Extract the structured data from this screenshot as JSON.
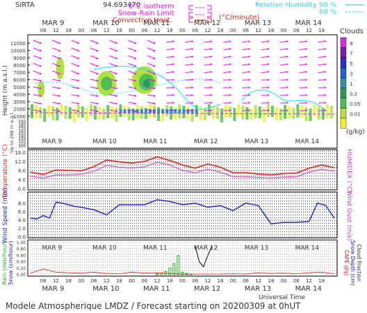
{
  "header": {
    "station": "SIRTA",
    "station_value": "94.693470",
    "legend_isotherm": "0°C isotherm",
    "legend_snow_rain": "Snow-Rain Limit",
    "legend_convective": "Convective Heat.",
    "legend_convective_unit": "(°C/minute)",
    "legend_rh": "Relative Humidity",
    "rh_90": "90 %",
    "rh_60": "60 %"
  },
  "footer": {
    "caption": "Modele Atmospherique LMDZ / Forecast starting on 20200309 at 0hUT",
    "utc_label": "Universal Time"
  },
  "colors": {
    "temperature": "#e02020",
    "humidex": "#c040c0",
    "wind_speed": "#2020c0",
    "wind_gust": "#c040c0",
    "rain": "#20b020",
    "snow": "#2020c0",
    "cape": "#e02020",
    "rh90": "#30e0ff",
    "rh60": "#30e0ff",
    "isotherm": "#ff00ff"
  },
  "time_axis": {
    "days": [
      "MAR 9",
      "MAR 10",
      "MAR 11",
      "MAR 12",
      "MAR 13",
      "MAR 14"
    ],
    "hours": [
      "06",
      "12",
      "18",
      "00",
      "06",
      "12",
      "18",
      "00",
      "06",
      "12",
      "18",
      "00",
      "06",
      "12",
      "18",
      "00",
      "06",
      "12",
      "18",
      "00",
      "06",
      "12",
      "18"
    ]
  },
  "cloud_colorbar": {
    "title": "Clouds",
    "unit": "(g/kg)",
    "labels": [
      "9",
      "7",
      "5",
      "3",
      "1",
      "0.2",
      "0.05",
      "0.01"
    ],
    "colors": [
      "#cc33cc",
      "#7a1ea8",
      "#3030c0",
      "#2060d0",
      "#3090b0",
      "#2a9a5a",
      "#4cc04c",
      "#b0e040",
      "#f0f030"
    ]
  },
  "chart_data": [
    {
      "type": "heatmap",
      "name": "clouds-height",
      "ylabel": "Height (m a.s.l.)",
      "ylabel2": "Up to 200 m a.g.l.",
      "y_ticks_upper": [
        "11000",
        "10000",
        "9000",
        "8000",
        "7000",
        "6000",
        "5000",
        "4000",
        "3000",
        "2000",
        "1000"
      ],
      "y_ticks_lower": [
        "200",
        "190",
        "180",
        "170",
        "160",
        "150",
        "140",
        "130",
        "120",
        "110",
        "100"
      ],
      "wind_arrows": true
    },
    {
      "type": "line",
      "name": "temperature",
      "ylabel": "Temperature (°C)",
      "ylabel_right": "HUMIDEX (°C)",
      "y_ticks": [
        "16.0",
        "12.0",
        "8.0",
        "4.0",
        "0.0"
      ],
      "ylim": [
        0,
        16
      ],
      "series": [
        {
          "name": "Temperature",
          "x": [
            0,
            6,
            12,
            18,
            24,
            30,
            36,
            42,
            48,
            54,
            60,
            66,
            72,
            78,
            84,
            90,
            96,
            102,
            108,
            114,
            120,
            126,
            132,
            138,
            144
          ],
          "values": [
            7.2,
            6.2,
            8.2,
            8.0,
            7.8,
            9.6,
            12.6,
            11.8,
            11.2,
            12.0,
            14.0,
            12.4,
            10.4,
            9.0,
            10.8,
            9.4,
            7.0,
            7.0,
            6.4,
            6.0,
            6.6,
            6.8,
            9.0,
            10.4,
            9.2
          ]
        },
        {
          "name": "Humidex",
          "x": [
            0,
            6,
            12,
            18,
            24,
            30,
            36,
            42,
            48,
            54,
            60,
            66,
            72,
            78,
            84,
            90,
            96,
            102,
            108,
            114,
            120,
            126,
            132,
            138,
            144
          ],
          "values": [
            5.4,
            4.6,
            6.0,
            6.0,
            6.2,
            7.6,
            10.2,
            9.4,
            9.0,
            9.6,
            11.6,
            10.4,
            8.0,
            7.0,
            8.6,
            7.2,
            5.2,
            5.2,
            4.8,
            4.6,
            5.0,
            5.2,
            7.2,
            8.6,
            7.6
          ]
        }
      ]
    },
    {
      "type": "line",
      "name": "wind",
      "ylabel": "Wind Speed (m/s)",
      "ylabel_right": "Wind Gust (m/s)",
      "y_ticks": [
        "8.0",
        "6.0",
        "4.0",
        "2.0",
        "0.0"
      ],
      "ylim": [
        0,
        10
      ],
      "series": [
        {
          "name": "Wind Speed",
          "x": [
            0,
            3,
            6,
            9,
            12,
            15,
            18,
            21,
            24,
            30,
            36,
            42,
            48,
            54,
            60,
            66,
            72,
            78,
            84,
            90,
            96,
            102,
            108,
            111,
            114,
            120,
            126,
            132,
            136,
            140,
            144
          ],
          "values": [
            4.4,
            4.2,
            5.0,
            4.4,
            8.2,
            8.0,
            7.6,
            7.2,
            7.0,
            6.4,
            5.2,
            7.6,
            7.6,
            7.6,
            8.8,
            8.4,
            7.6,
            8.0,
            7.0,
            7.4,
            6.2,
            8.0,
            7.4,
            5.2,
            3.0,
            3.4,
            3.4,
            3.6,
            8.0,
            7.4,
            4.4
          ]
        }
      ]
    },
    {
      "type": "bar",
      "name": "precipitation",
      "ylabel": "Rain (mm/hour)",
      "ylabel_b": "Snow (cm/hour)",
      "ylabel_right": "CAPE (J/g)",
      "ylabel_right_b": "Snow Depth (cm)",
      "ylabel_right_c": "Cloud Fraction",
      "y_ticks": [
        "1.00",
        "0.80",
        "0.60",
        "0.40",
        "0.20",
        "0.00"
      ],
      "ylim": [
        0,
        1
      ],
      "rain_x": [
        60,
        62,
        64,
        66,
        68,
        70,
        72,
        74,
        76
      ],
      "rain_values": [
        0.04,
        0.06,
        0.1,
        0.2,
        0.35,
        0.6,
        0.08,
        0.04,
        0.02
      ],
      "cape_x": [
        0,
        6,
        12,
        18,
        24,
        30,
        36,
        42,
        48,
        54,
        60,
        66,
        72,
        78,
        84,
        90,
        96,
        102,
        108,
        114,
        120,
        126,
        132,
        138,
        144
      ],
      "cape_values": [
        0.05,
        0.18,
        0.08,
        0.06,
        0.05,
        0.08,
        0.04,
        0.03,
        0.08,
        0.05,
        0.06,
        0.04,
        0.02,
        0.02,
        0.02,
        0.02,
        0.03,
        0.02,
        0.06,
        0.04,
        0.05,
        0.03,
        0.06,
        0.08,
        0.03
      ],
      "cloud_fraction_x": [
        78,
        80,
        82,
        84,
        86
      ],
      "cloud_fraction_values": [
        0.9,
        0.4,
        0.25,
        0.6,
        0.9
      ]
    }
  ]
}
